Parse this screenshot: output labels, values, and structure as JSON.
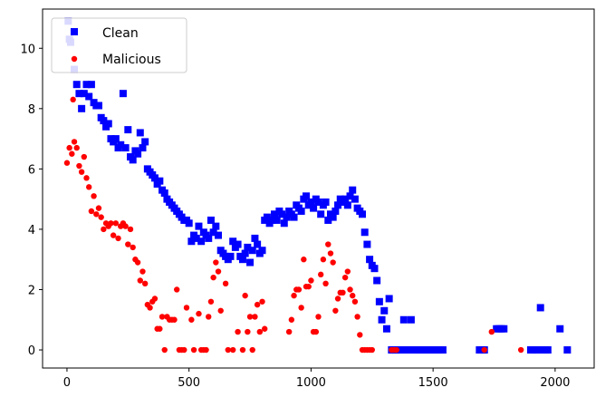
{
  "chart_data": {
    "type": "scatter",
    "title": "",
    "xlabel": "",
    "ylabel": "",
    "xlim": [
      -100,
      2160
    ],
    "ylim": [
      -0.6,
      11.3
    ],
    "xticks": [
      0,
      500,
      1000,
      1500,
      2000
    ],
    "yticks": [
      0,
      2,
      4,
      6,
      8,
      10
    ],
    "grid": false,
    "legend_position": "top-left",
    "series": [
      {
        "name": "Clean",
        "color": "#0000ff",
        "marker": "square",
        "points": [
          [
            5,
            10.9
          ],
          [
            10,
            10.3
          ],
          [
            15,
            10.2
          ],
          [
            30,
            9.3
          ],
          [
            40,
            8.8
          ],
          [
            50,
            8.5
          ],
          [
            60,
            8.0
          ],
          [
            70,
            8.5
          ],
          [
            80,
            8.8
          ],
          [
            90,
            8.4
          ],
          [
            100,
            8.8
          ],
          [
            110,
            8.2
          ],
          [
            120,
            8.1
          ],
          [
            130,
            8.1
          ],
          [
            140,
            7.7
          ],
          [
            150,
            7.6
          ],
          [
            160,
            7.4
          ],
          [
            170,
            7.5
          ],
          [
            180,
            7.0
          ],
          [
            190,
            6.9
          ],
          [
            200,
            7.0
          ],
          [
            210,
            6.7
          ],
          [
            220,
            6.8
          ],
          [
            230,
            8.5
          ],
          [
            240,
            6.7
          ],
          [
            250,
            7.3
          ],
          [
            260,
            6.4
          ],
          [
            270,
            6.3
          ],
          [
            280,
            6.6
          ],
          [
            290,
            6.5
          ],
          [
            300,
            7.2
          ],
          [
            310,
            6.7
          ],
          [
            320,
            6.9
          ],
          [
            330,
            6.0
          ],
          [
            340,
            5.9
          ],
          [
            350,
            5.8
          ],
          [
            360,
            5.7
          ],
          [
            370,
            5.5
          ],
          [
            380,
            5.6
          ],
          [
            390,
            5.3
          ],
          [
            400,
            5.2
          ],
          [
            410,
            5.0
          ],
          [
            420,
            4.9
          ],
          [
            430,
            4.8
          ],
          [
            440,
            4.7
          ],
          [
            450,
            4.6
          ],
          [
            460,
            4.5
          ],
          [
            470,
            4.4
          ],
          [
            480,
            4.3
          ],
          [
            490,
            4.3
          ],
          [
            500,
            4.2
          ],
          [
            510,
            3.6
          ],
          [
            520,
            3.8
          ],
          [
            530,
            3.7
          ],
          [
            540,
            4.1
          ],
          [
            550,
            3.6
          ],
          [
            560,
            3.9
          ],
          [
            570,
            3.8
          ],
          [
            580,
            3.7
          ],
          [
            590,
            4.3
          ],
          [
            600,
            3.9
          ],
          [
            610,
            4.1
          ],
          [
            620,
            3.8
          ],
          [
            630,
            3.3
          ],
          [
            640,
            3.2
          ],
          [
            650,
            3.1
          ],
          [
            660,
            3.0
          ],
          [
            670,
            3.1
          ],
          [
            680,
            3.6
          ],
          [
            690,
            3.4
          ],
          [
            700,
            3.5
          ],
          [
            710,
            3.1
          ],
          [
            720,
            3.0
          ],
          [
            730,
            3.2
          ],
          [
            740,
            3.4
          ],
          [
            750,
            2.9
          ],
          [
            760,
            3.3
          ],
          [
            770,
            3.7
          ],
          [
            780,
            3.5
          ],
          [
            790,
            3.2
          ],
          [
            800,
            3.3
          ],
          [
            810,
            4.3
          ],
          [
            820,
            4.4
          ],
          [
            830,
            4.2
          ],
          [
            840,
            4.3
          ],
          [
            850,
            4.5
          ],
          [
            860,
            4.3
          ],
          [
            870,
            4.6
          ],
          [
            880,
            4.5
          ],
          [
            890,
            4.2
          ],
          [
            900,
            4.4
          ],
          [
            910,
            4.6
          ],
          [
            920,
            4.5
          ],
          [
            930,
            4.4
          ],
          [
            940,
            4.8
          ],
          [
            950,
            4.7
          ],
          [
            960,
            4.6
          ],
          [
            970,
            5.0
          ],
          [
            980,
            5.1
          ],
          [
            990,
            4.8
          ],
          [
            1000,
            4.9
          ],
          [
            1010,
            4.7
          ],
          [
            1020,
            5.0
          ],
          [
            1030,
            4.9
          ],
          [
            1040,
            4.5
          ],
          [
            1050,
            4.8
          ],
          [
            1060,
            4.9
          ],
          [
            1070,
            4.3
          ],
          [
            1080,
            4.5
          ],
          [
            1090,
            4.4
          ],
          [
            1100,
            4.6
          ],
          [
            1110,
            4.8
          ],
          [
            1120,
            5.0
          ],
          [
            1130,
            4.9
          ],
          [
            1140,
            5.0
          ],
          [
            1150,
            4.8
          ],
          [
            1160,
            5.1
          ],
          [
            1170,
            5.3
          ],
          [
            1180,
            5.0
          ],
          [
            1190,
            4.7
          ],
          [
            1200,
            4.6
          ],
          [
            1210,
            4.5
          ],
          [
            1220,
            3.9
          ],
          [
            1230,
            3.5
          ],
          [
            1240,
            3.0
          ],
          [
            1250,
            2.8
          ],
          [
            1260,
            2.7
          ],
          [
            1270,
            2.3
          ],
          [
            1280,
            1.6
          ],
          [
            1290,
            1.0
          ],
          [
            1300,
            1.3
          ],
          [
            1310,
            0.7
          ],
          [
            1320,
            1.7
          ],
          [
            1330,
            0.0
          ],
          [
            1340,
            0.0
          ],
          [
            1350,
            0.0
          ],
          [
            1360,
            0.0
          ],
          [
            1370,
            0.0
          ],
          [
            1380,
            1.0
          ],
          [
            1390,
            0.0
          ],
          [
            1400,
            0.0
          ],
          [
            1410,
            1.0
          ],
          [
            1420,
            0.0
          ],
          [
            1430,
            0.0
          ],
          [
            1440,
            0.0
          ],
          [
            1450,
            0.0
          ],
          [
            1460,
            0.0
          ],
          [
            1470,
            0.0
          ],
          [
            1480,
            0.0
          ],
          [
            1490,
            0.0
          ],
          [
            1500,
            0.0
          ],
          [
            1510,
            0.0
          ],
          [
            1520,
            0.0
          ],
          [
            1530,
            0.0
          ],
          [
            1540,
            0.0
          ],
          [
            1690,
            0.0
          ],
          [
            1700,
            0.0
          ],
          [
            1710,
            0.0
          ],
          [
            1760,
            0.7
          ],
          [
            1770,
            0.7
          ],
          [
            1780,
            0.7
          ],
          [
            1790,
            0.7
          ],
          [
            1900,
            0.0
          ],
          [
            1910,
            0.0
          ],
          [
            1920,
            0.0
          ],
          [
            1930,
            0.0
          ],
          [
            1940,
            1.4
          ],
          [
            1950,
            0.0
          ],
          [
            1960,
            0.0
          ],
          [
            1970,
            0.0
          ],
          [
            2020,
            0.7
          ],
          [
            2050,
            0.0
          ]
        ]
      },
      {
        "name": "Malicious",
        "color": "#ff0000",
        "marker": "circle",
        "points": [
          [
            0,
            6.2
          ],
          [
            10,
            6.7
          ],
          [
            20,
            6.5
          ],
          [
            25,
            8.3
          ],
          [
            30,
            6.9
          ],
          [
            40,
            6.7
          ],
          [
            50,
            6.1
          ],
          [
            60,
            5.9
          ],
          [
            70,
            6.4
          ],
          [
            80,
            5.7
          ],
          [
            90,
            5.4
          ],
          [
            100,
            4.6
          ],
          [
            110,
            5.1
          ],
          [
            120,
            4.5
          ],
          [
            130,
            4.7
          ],
          [
            140,
            4.4
          ],
          [
            150,
            4.0
          ],
          [
            160,
            4.2
          ],
          [
            170,
            4.1
          ],
          [
            180,
            4.2
          ],
          [
            190,
            3.8
          ],
          [
            200,
            4.2
          ],
          [
            210,
            3.7
          ],
          [
            220,
            4.1
          ],
          [
            230,
            4.2
          ],
          [
            240,
            4.1
          ],
          [
            250,
            3.5
          ],
          [
            260,
            4.0
          ],
          [
            270,
            3.4
          ],
          [
            280,
            3.0
          ],
          [
            290,
            2.9
          ],
          [
            300,
            2.3
          ],
          [
            310,
            2.6
          ],
          [
            320,
            2.2
          ],
          [
            330,
            1.5
          ],
          [
            340,
            1.4
          ],
          [
            350,
            1.6
          ],
          [
            360,
            1.7
          ],
          [
            370,
            0.7
          ],
          [
            380,
            0.7
          ],
          [
            390,
            1.1
          ],
          [
            400,
            0.0
          ],
          [
            410,
            1.1
          ],
          [
            420,
            1.0
          ],
          [
            430,
            1.0
          ],
          [
            440,
            1.0
          ],
          [
            450,
            2.0
          ],
          [
            460,
            0.0
          ],
          [
            470,
            0.0
          ],
          [
            480,
            0.0
          ],
          [
            490,
            1.4
          ],
          [
            510,
            1.0
          ],
          [
            520,
            0.0
          ],
          [
            540,
            1.2
          ],
          [
            550,
            0.0
          ],
          [
            560,
            0.0
          ],
          [
            570,
            0.0
          ],
          [
            580,
            1.1
          ],
          [
            590,
            1.6
          ],
          [
            600,
            2.4
          ],
          [
            610,
            2.9
          ],
          [
            620,
            2.6
          ],
          [
            630,
            1.3
          ],
          [
            650,
            2.2
          ],
          [
            660,
            0.0
          ],
          [
            680,
            0.0
          ],
          [
            700,
            0.6
          ],
          [
            720,
            0.0
          ],
          [
            730,
            1.8
          ],
          [
            740,
            0.6
          ],
          [
            750,
            1.1
          ],
          [
            760,
            0.0
          ],
          [
            770,
            1.1
          ],
          [
            780,
            1.5
          ],
          [
            790,
            0.6
          ],
          [
            800,
            1.6
          ],
          [
            810,
            0.7
          ],
          [
            910,
            0.6
          ],
          [
            920,
            1.0
          ],
          [
            930,
            1.8
          ],
          [
            940,
            2.0
          ],
          [
            950,
            2.0
          ],
          [
            960,
            1.4
          ],
          [
            970,
            3.0
          ],
          [
            980,
            2.1
          ],
          [
            990,
            2.1
          ],
          [
            1000,
            2.3
          ],
          [
            1010,
            0.6
          ],
          [
            1020,
            0.6
          ],
          [
            1030,
            1.1
          ],
          [
            1040,
            2.5
          ],
          [
            1050,
            3.0
          ],
          [
            1060,
            2.2
          ],
          [
            1070,
            3.5
          ],
          [
            1080,
            3.2
          ],
          [
            1090,
            2.9
          ],
          [
            1100,
            1.3
          ],
          [
            1110,
            1.7
          ],
          [
            1120,
            1.9
          ],
          [
            1130,
            1.9
          ],
          [
            1140,
            2.4
          ],
          [
            1150,
            2.6
          ],
          [
            1160,
            2.0
          ],
          [
            1170,
            1.8
          ],
          [
            1180,
            1.6
          ],
          [
            1190,
            1.1
          ],
          [
            1200,
            0.5
          ],
          [
            1210,
            0.0
          ],
          [
            1220,
            0.0
          ],
          [
            1230,
            0.0
          ],
          [
            1240,
            0.0
          ],
          [
            1250,
            0.0
          ],
          [
            1330,
            0.0
          ],
          [
            1340,
            0.0
          ],
          [
            1350,
            0.0
          ],
          [
            1710,
            0.0
          ],
          [
            1740,
            0.6
          ],
          [
            1860,
            0.0
          ]
        ]
      }
    ]
  }
}
